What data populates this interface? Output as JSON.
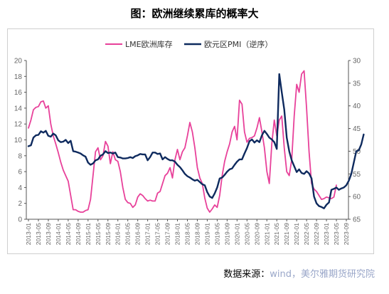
{
  "title": "图：欧洲继续累库的概率大",
  "source": {
    "prefix": "数据来源：",
    "text": "wind，美尔雅期货研究院"
  },
  "chart_data": {
    "type": "line",
    "title": "图：欧洲继续累库的概率大",
    "x_ticks": [
      "2013-01",
      "2013-05",
      "2013-09",
      "2014-01",
      "2014-05",
      "2014-09",
      "2015-01",
      "2015-05",
      "2015-09",
      "2016-01",
      "2016-05",
      "2016-09",
      "2017-01",
      "2017-05",
      "2017-09",
      "2018-01",
      "2018-05",
      "2018-09",
      "2019-01",
      "2019-05",
      "2019-09",
      "2020-01",
      "2020-05",
      "2020-09",
      "2021-01",
      "2021-05",
      "2021-09",
      "2022-01",
      "2022-05",
      "2022-09",
      "2023-01",
      "2023-05",
      "2023-09"
    ],
    "y_left": {
      "min": 0,
      "max": 20,
      "ticks": [
        0,
        2,
        4,
        6,
        8,
        10,
        12,
        14,
        16,
        18,
        20
      ]
    },
    "y_right": {
      "min": 30,
      "max": 65,
      "reversed": true,
      "ticks": [
        30,
        35,
        40,
        45,
        50,
        55,
        60,
        65
      ]
    },
    "legend_position": "top-center",
    "grid": false,
    "series": [
      {
        "name": "LME欧洲库存",
        "axis": "left",
        "color": "#e8419a",
        "points": [
          [
            "2013-01",
            11.5
          ],
          [
            "2013-02",
            12.5
          ],
          [
            "2013-03",
            13.8
          ],
          [
            "2013-04",
            14.1
          ],
          [
            "2013-05",
            14.2
          ],
          [
            "2013-06",
            14.8
          ],
          [
            "2013-07",
            14.9
          ],
          [
            "2013-08",
            14.0
          ],
          [
            "2013-09",
            14.3
          ],
          [
            "2013-10",
            12.0
          ],
          [
            "2013-11",
            10.5
          ],
          [
            "2013-12",
            9.5
          ],
          [
            "2014-01",
            8.4
          ],
          [
            "2014-02",
            7.2
          ],
          [
            "2014-03",
            6.2
          ],
          [
            "2014-04",
            5.5
          ],
          [
            "2014-05",
            4.8
          ],
          [
            "2014-06",
            3.0
          ],
          [
            "2014-07",
            1.2
          ],
          [
            "2014-08",
            1.2
          ],
          [
            "2014-09",
            1.0
          ],
          [
            "2014-10",
            0.9
          ],
          [
            "2014-11",
            0.9
          ],
          [
            "2014-12",
            1.1
          ],
          [
            "2015-01",
            1.2
          ],
          [
            "2015-02",
            2.5
          ],
          [
            "2015-03",
            5.5
          ],
          [
            "2015-04",
            8.5
          ],
          [
            "2015-05",
            9.0
          ],
          [
            "2015-06",
            7.5
          ],
          [
            "2015-07",
            8.0
          ],
          [
            "2015-08",
            9.8
          ],
          [
            "2015-09",
            9.2
          ],
          [
            "2015-10",
            7.0
          ],
          [
            "2015-11",
            8.5
          ],
          [
            "2015-12",
            7.5
          ],
          [
            "2016-01",
            7.3
          ],
          [
            "2016-02",
            6.0
          ],
          [
            "2016-03",
            4.0
          ],
          [
            "2016-04",
            2.5
          ],
          [
            "2016-05",
            2.1
          ],
          [
            "2016-06",
            2.0
          ],
          [
            "2016-07",
            1.5
          ],
          [
            "2016-08",
            1.8
          ],
          [
            "2016-09",
            2.8
          ],
          [
            "2016-10",
            3.2
          ],
          [
            "2016-11",
            3.0
          ],
          [
            "2016-12",
            2.6
          ],
          [
            "2017-01",
            2.3
          ],
          [
            "2017-02",
            2.4
          ],
          [
            "2017-03",
            2.3
          ],
          [
            "2017-04",
            2.3
          ],
          [
            "2017-05",
            3.3
          ],
          [
            "2017-06",
            3.5
          ],
          [
            "2017-07",
            4.5
          ],
          [
            "2017-08",
            5.5
          ],
          [
            "2017-09",
            5.8
          ],
          [
            "2017-10",
            6.5
          ],
          [
            "2017-11",
            5.2
          ],
          [
            "2017-12",
            7.5
          ],
          [
            "2018-01",
            8.8
          ],
          [
            "2018-02",
            7.5
          ],
          [
            "2018-03",
            8.5
          ],
          [
            "2018-04",
            9.0
          ],
          [
            "2018-05",
            10.5
          ],
          [
            "2018-06",
            12.2
          ],
          [
            "2018-07",
            11.0
          ],
          [
            "2018-08",
            9.0
          ],
          [
            "2018-09",
            6.5
          ],
          [
            "2018-10",
            5.2
          ],
          [
            "2018-11",
            4.5
          ],
          [
            "2018-12",
            2.7
          ],
          [
            "2019-01",
            1.4
          ],
          [
            "2019-02",
            0.9
          ],
          [
            "2019-03",
            1.3
          ],
          [
            "2019-04",
            1.8
          ],
          [
            "2019-05",
            1.5
          ],
          [
            "2019-06",
            3.0
          ],
          [
            "2019-07",
            5.5
          ],
          [
            "2019-08",
            7.3
          ],
          [
            "2019-09",
            8.5
          ],
          [
            "2019-10",
            9.5
          ],
          [
            "2019-11",
            11.0
          ],
          [
            "2019-12",
            11.7
          ],
          [
            "2020-01",
            10.0
          ],
          [
            "2020-02",
            15.0
          ],
          [
            "2020-03",
            14.5
          ],
          [
            "2020-04",
            11.0
          ],
          [
            "2020-05",
            9.7
          ],
          [
            "2020-06",
            10.2
          ],
          [
            "2020-07",
            10.3
          ],
          [
            "2020-08",
            10.5
          ],
          [
            "2020-09",
            11.5
          ],
          [
            "2020-10",
            12.8
          ],
          [
            "2020-11",
            11.0
          ],
          [
            "2020-12",
            9.0
          ],
          [
            "2021-01",
            6.0
          ],
          [
            "2021-02",
            4.5
          ],
          [
            "2021-03",
            9.5
          ],
          [
            "2021-04",
            12.5
          ],
          [
            "2021-05",
            10.5
          ],
          [
            "2021-06",
            12.5
          ],
          [
            "2021-07",
            13.0
          ],
          [
            "2021-08",
            9.0
          ],
          [
            "2021-09",
            6.0
          ],
          [
            "2021-10",
            5.5
          ],
          [
            "2021-11",
            7.5
          ],
          [
            "2021-12",
            13.0
          ],
          [
            "2022-01",
            17.0
          ],
          [
            "2022-02",
            16.0
          ],
          [
            "2022-03",
            18.3
          ],
          [
            "2022-04",
            18.7
          ],
          [
            "2022-05",
            14.0
          ],
          [
            "2022-06",
            8.5
          ],
          [
            "2022-07",
            4.5
          ],
          [
            "2022-08",
            3.8
          ],
          [
            "2022-09",
            3.5
          ],
          [
            "2022-10",
            3.0
          ],
          [
            "2022-11",
            2.5
          ],
          [
            "2022-12",
            2.6
          ],
          [
            "2023-01",
            2.8
          ],
          [
            "2023-02",
            2.7
          ],
          [
            "2023-03",
            2.6
          ],
          [
            "2023-04",
            2.8
          ],
          [
            "2023-05",
            4.3
          ]
        ]
      },
      {
        "name": "欧元区PMI（逆序）",
        "axis": "right",
        "color": "#0e2a5e",
        "points": [
          [
            "2013-01",
            48.9
          ],
          [
            "2013-02",
            48.7
          ],
          [
            "2013-03",
            47.0
          ],
          [
            "2013-04",
            46.5
          ],
          [
            "2013-05",
            46.4
          ],
          [
            "2013-06",
            45.6
          ],
          [
            "2013-07",
            45.9
          ],
          [
            "2013-08",
            45.5
          ],
          [
            "2013-09",
            46.6
          ],
          [
            "2013-10",
            46.8
          ],
          [
            "2013-11",
            46.1
          ],
          [
            "2013-12",
            46.5
          ],
          [
            "2014-01",
            47.6
          ],
          [
            "2014-02",
            48.0
          ],
          [
            "2014-03",
            47.9
          ],
          [
            "2014-04",
            47.5
          ],
          [
            "2014-05",
            48.2
          ],
          [
            "2014-06",
            47.7
          ],
          [
            "2014-07",
            50.0
          ],
          [
            "2014-08",
            50.1
          ],
          [
            "2014-09",
            50.3
          ],
          [
            "2014-10",
            50.5
          ],
          [
            "2014-11",
            50.9
          ],
          [
            "2014-12",
            51.2
          ],
          [
            "2015-01",
            52.5
          ],
          [
            "2015-02",
            53.0
          ],
          [
            "2015-03",
            52.7
          ],
          [
            "2015-04",
            52.0
          ],
          [
            "2015-05",
            51.8
          ],
          [
            "2015-06",
            51.0
          ],
          [
            "2015-07",
            50.7
          ],
          [
            "2015-08",
            50.0
          ],
          [
            "2015-09",
            50.4
          ],
          [
            "2015-10",
            50.3
          ],
          [
            "2015-11",
            50.5
          ],
          [
            "2015-12",
            50.3
          ],
          [
            "2016-01",
            51.3
          ],
          [
            "2016-02",
            51.4
          ],
          [
            "2016-03",
            51.6
          ],
          [
            "2016-04",
            51.6
          ],
          [
            "2016-05",
            51.5
          ],
          [
            "2016-06",
            51.3
          ],
          [
            "2016-07",
            51.5
          ],
          [
            "2016-08",
            51.1
          ],
          [
            "2016-09",
            50.9
          ],
          [
            "2016-10",
            50.6
          ],
          [
            "2016-11",
            50.7
          ],
          [
            "2016-12",
            50.7
          ],
          [
            "2017-01",
            52.0
          ],
          [
            "2017-02",
            51.3
          ],
          [
            "2017-03",
            50.3
          ],
          [
            "2017-04",
            50.3
          ],
          [
            "2017-05",
            50.6
          ],
          [
            "2017-06",
            50.5
          ],
          [
            "2017-07",
            51.8
          ],
          [
            "2017-08",
            51.3
          ],
          [
            "2017-09",
            51.7
          ],
          [
            "2017-10",
            52.0
          ],
          [
            "2017-11",
            52.0
          ],
          [
            "2017-12",
            52.3
          ],
          [
            "2018-01",
            53.0
          ],
          [
            "2018-02",
            53.5
          ],
          [
            "2018-03",
            54.2
          ],
          [
            "2018-04",
            55.0
          ],
          [
            "2018-05",
            55.5
          ],
          [
            "2018-06",
            55.8
          ],
          [
            "2018-07",
            56.2
          ],
          [
            "2018-08",
            56.5
          ],
          [
            "2018-09",
            56.3
          ],
          [
            "2018-10",
            56.8
          ],
          [
            "2018-11",
            57.3
          ],
          [
            "2018-12",
            57.5
          ],
          [
            "2019-01",
            59.0
          ],
          [
            "2019-02",
            60.0
          ],
          [
            "2019-03",
            60.3
          ],
          [
            "2019-04",
            59.3
          ],
          [
            "2019-05",
            58.0
          ],
          [
            "2019-06",
            56.0
          ],
          [
            "2019-07",
            55.8
          ],
          [
            "2019-08",
            55.2
          ],
          [
            "2019-09",
            54.5
          ],
          [
            "2019-10",
            54.0
          ],
          [
            "2019-11",
            53.8
          ],
          [
            "2019-12",
            53.0
          ],
          [
            "2020-01",
            52.3
          ],
          [
            "2020-02",
            51.8
          ],
          [
            "2020-03",
            51.8
          ],
          [
            "2020-04",
            50.5
          ],
          [
            "2020-05",
            49.3
          ],
          [
            "2020-06",
            47.8
          ],
          [
            "2020-07",
            47.4
          ],
          [
            "2020-08",
            48.1
          ],
          [
            "2020-09",
            47.6
          ],
          [
            "2020-10",
            48.0
          ],
          [
            "2020-11",
            46.5
          ],
          [
            "2020-12",
            45.5
          ],
          [
            "2021-01",
            46.2
          ],
          [
            "2021-02",
            47.0
          ],
          [
            "2021-03",
            47.4
          ],
          [
            "2021-04",
            48.0
          ],
          [
            "2021-05",
            49.5
          ],
          [
            "2021-06",
            33.0
          ],
          [
            "2021-07",
            37.0
          ],
          [
            "2021-08",
            40.8
          ],
          [
            "2021-09",
            47.0
          ],
          [
            "2021-10",
            50.0
          ],
          [
            "2021-11",
            52.0
          ],
          [
            "2021-12",
            53.3
          ],
          [
            "2022-01",
            54.6
          ],
          [
            "2022-02",
            54.0
          ],
          [
            "2022-03",
            54.8
          ],
          [
            "2022-04",
            55.0
          ],
          [
            "2022-05",
            54.4
          ],
          [
            "2022-06",
            54.9
          ],
          [
            "2022-07",
            56.0
          ],
          [
            "2022-08",
            60.0
          ],
          [
            "2022-09",
            61.5
          ],
          [
            "2022-10",
            62.1
          ],
          [
            "2022-11",
            62.3
          ],
          [
            "2022-12",
            62.6
          ],
          [
            "2023-01",
            61.8
          ],
          [
            "2023-02",
            61.3
          ],
          [
            "2023-03",
            58.5
          ],
          [
            "2023-04",
            58.3
          ],
          [
            "2023-05",
            58.0
          ],
          [
            "2023-06",
            58.5
          ],
          [
            "2023-07",
            58.2
          ],
          [
            "2023-08",
            58.0
          ],
          [
            "2023-09",
            57.5
          ],
          [
            "2023-10",
            56.5
          ],
          [
            "2023-11",
            55.0
          ],
          [
            "2023-12",
            52.5
          ],
          [
            "2024-01",
            50.0
          ],
          [
            "2024-02",
            49.8
          ],
          [
            "2024-03",
            48.5
          ],
          [
            "2024-04",
            46.3
          ]
        ]
      }
    ]
  }
}
